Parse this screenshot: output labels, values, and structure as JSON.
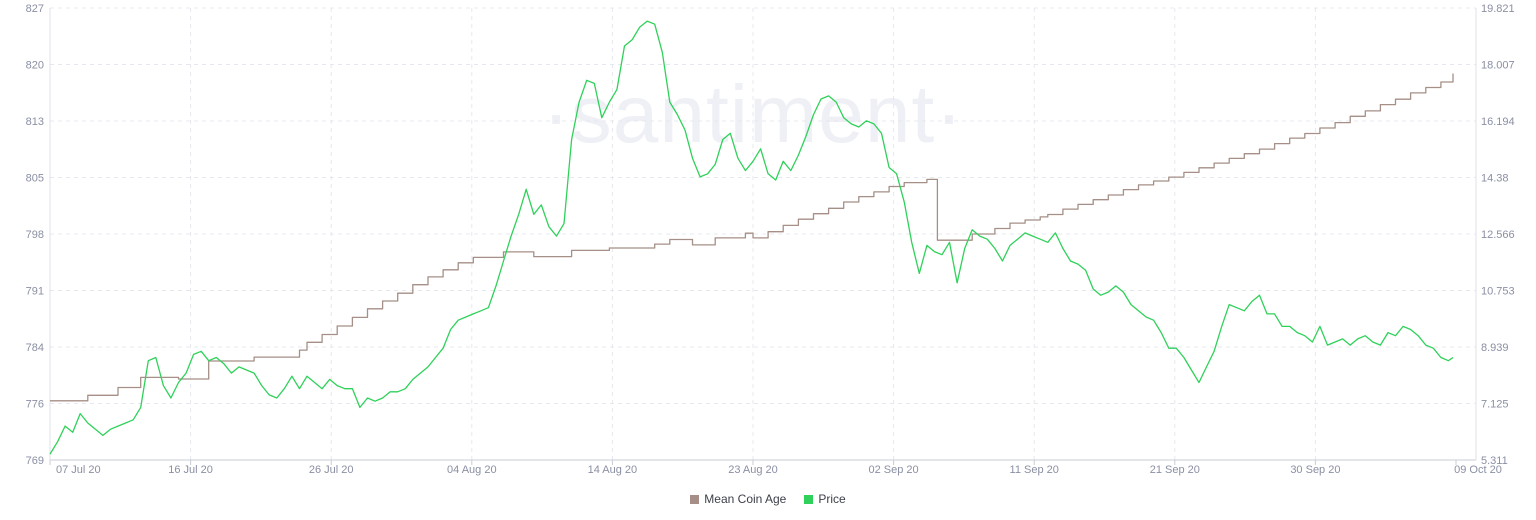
{
  "chart_data": {
    "type": "line",
    "watermark": "·santiment·",
    "x_ticks": [
      "07 Jul 20",
      "16 Jul 20",
      "26 Jul 20",
      "04 Aug 20",
      "14 Aug 20",
      "23 Aug 20",
      "02 Sep 20",
      "11 Sep 20",
      "21 Sep 20",
      "30 Sep 20",
      "09 Oct 20"
    ],
    "y_left_ticks": [
      "827",
      "820",
      "813",
      "805",
      "798",
      "791",
      "784",
      "776",
      "769"
    ],
    "y_right_ticks": [
      "19.821",
      "18.007",
      "16.194",
      "14.38",
      "12.566",
      "10.753",
      "8.939",
      "7.125",
      "5.311"
    ],
    "y_left_range": [
      769,
      827
    ],
    "y_right_range": [
      5.311,
      19.821
    ],
    "x_range_days": [
      0,
      93
    ],
    "grid": true,
    "legend_position": "bottom-center",
    "series": [
      {
        "name": "Mean Coin Age",
        "axis": "left",
        "color": "#a58f86",
        "shape": "step",
        "points": [
          [
            0,
            776.6
          ],
          [
            1.5,
            776.6
          ],
          [
            2.5,
            777.3
          ],
          [
            4,
            777.3
          ],
          [
            4.5,
            778.3
          ],
          [
            5.5,
            778.3
          ],
          [
            6,
            779.6
          ],
          [
            8,
            779.6
          ],
          [
            8.5,
            779.4
          ],
          [
            10,
            779.4
          ],
          [
            10.5,
            781.7
          ],
          [
            12.5,
            781.7
          ],
          [
            13.5,
            782.2
          ],
          [
            15.5,
            782.2
          ],
          [
            16.5,
            783.1
          ],
          [
            17,
            784.1
          ],
          [
            18,
            785.1
          ],
          [
            19,
            786.2
          ],
          [
            20,
            787.3
          ],
          [
            21,
            788.4
          ],
          [
            22,
            789.4
          ],
          [
            23,
            790.4
          ],
          [
            24,
            791.5
          ],
          [
            25,
            792.5
          ],
          [
            26,
            793.4
          ],
          [
            27,
            794.3
          ],
          [
            28,
            795.0
          ],
          [
            29.5,
            795.0
          ],
          [
            30,
            795.7
          ],
          [
            31,
            795.7
          ],
          [
            32,
            795.1
          ],
          [
            34,
            795.1
          ],
          [
            34.5,
            795.9
          ],
          [
            36,
            795.9
          ],
          [
            37,
            796.2
          ],
          [
            39,
            796.2
          ],
          [
            40,
            796.7
          ],
          [
            41,
            797.3
          ],
          [
            42,
            797.3
          ],
          [
            42.5,
            796.6
          ],
          [
            43.5,
            796.6
          ],
          [
            44,
            797.5
          ],
          [
            45,
            797.5
          ],
          [
            46,
            798.1
          ],
          [
            46.5,
            797.5
          ],
          [
            47,
            797.5
          ],
          [
            47.5,
            798.3
          ],
          [
            48.5,
            799.1
          ],
          [
            49.5,
            799.9
          ],
          [
            50.5,
            800.6
          ],
          [
            51.5,
            801.3
          ],
          [
            52.5,
            802.1
          ],
          [
            53.5,
            802.8
          ],
          [
            54.5,
            803.4
          ],
          [
            55.5,
            804.1
          ],
          [
            56.5,
            804.6
          ],
          [
            58,
            805.0
          ],
          [
            58.5,
            805.0
          ],
          [
            58.7,
            797.2
          ],
          [
            60.5,
            797.2
          ],
          [
            61,
            798.0
          ],
          [
            62.5,
            798.7
          ],
          [
            63.5,
            799.4
          ],
          [
            64.5,
            799.8
          ],
          [
            65.5,
            800.2
          ],
          [
            66,
            800.5
          ],
          [
            67,
            801.2
          ],
          [
            68,
            801.8
          ],
          [
            69,
            802.4
          ],
          [
            70,
            803.0
          ],
          [
            71,
            803.7
          ],
          [
            72,
            804.3
          ],
          [
            73,
            804.8
          ],
          [
            74,
            805.3
          ],
          [
            75,
            805.9
          ],
          [
            76,
            806.5
          ],
          [
            77,
            807.1
          ],
          [
            78,
            807.7
          ],
          [
            79,
            808.3
          ],
          [
            80,
            808.9
          ],
          [
            81,
            809.6
          ],
          [
            82,
            810.3
          ],
          [
            83,
            810.9
          ],
          [
            84,
            811.6
          ],
          [
            85,
            812.3
          ],
          [
            86,
            813.1
          ],
          [
            87,
            813.8
          ],
          [
            88,
            814.6
          ],
          [
            89,
            815.3
          ],
          [
            90,
            816.1
          ],
          [
            91,
            816.8
          ],
          [
            92,
            817.5
          ],
          [
            92.8,
            818.6
          ]
        ]
      },
      {
        "name": "Price",
        "axis": "right",
        "color": "#2fd15a",
        "shape": "line",
        "points": [
          [
            0,
            5.5
          ],
          [
            0.5,
            5.9
          ],
          [
            1,
            6.4
          ],
          [
            1.5,
            6.2
          ],
          [
            2,
            6.8
          ],
          [
            2.5,
            6.5
          ],
          [
            3,
            6.3
          ],
          [
            3.5,
            6.1
          ],
          [
            4,
            6.3
          ],
          [
            4.5,
            6.4
          ],
          [
            5,
            6.5
          ],
          [
            5.5,
            6.6
          ],
          [
            6,
            7.0
          ],
          [
            6.5,
            8.5
          ],
          [
            7,
            8.6
          ],
          [
            7.5,
            7.7
          ],
          [
            8,
            7.3
          ],
          [
            8.5,
            7.8
          ],
          [
            9,
            8.1
          ],
          [
            9.5,
            8.7
          ],
          [
            10,
            8.8
          ],
          [
            10.5,
            8.5
          ],
          [
            11,
            8.6
          ],
          [
            11.5,
            8.4
          ],
          [
            12,
            8.1
          ],
          [
            12.5,
            8.3
          ],
          [
            13,
            8.2
          ],
          [
            13.5,
            8.1
          ],
          [
            14,
            7.7
          ],
          [
            14.5,
            7.4
          ],
          [
            15,
            7.3
          ],
          [
            15.5,
            7.6
          ],
          [
            16,
            8.0
          ],
          [
            16.5,
            7.6
          ],
          [
            17,
            8.0
          ],
          [
            17.5,
            7.8
          ],
          [
            18,
            7.6
          ],
          [
            18.5,
            7.9
          ],
          [
            19,
            7.7
          ],
          [
            19.5,
            7.6
          ],
          [
            20,
            7.6
          ],
          [
            20.5,
            7.0
          ],
          [
            21,
            7.3
          ],
          [
            21.5,
            7.2
          ],
          [
            22,
            7.3
          ],
          [
            22.5,
            7.5
          ],
          [
            23,
            7.5
          ],
          [
            23.5,
            7.6
          ],
          [
            24,
            7.9
          ],
          [
            24.5,
            8.1
          ],
          [
            25,
            8.3
          ],
          [
            25.5,
            8.6
          ],
          [
            26,
            8.9
          ],
          [
            26.5,
            9.5
          ],
          [
            27,
            9.8
          ],
          [
            27.5,
            9.9
          ],
          [
            28,
            10.0
          ],
          [
            28.5,
            10.1
          ],
          [
            29,
            10.2
          ],
          [
            29.5,
            10.9
          ],
          [
            30,
            11.7
          ],
          [
            30.5,
            12.5
          ],
          [
            31,
            13.2
          ],
          [
            31.5,
            14.0
          ],
          [
            32,
            13.2
          ],
          [
            32.5,
            13.5
          ],
          [
            33,
            12.8
          ],
          [
            33.5,
            12.5
          ],
          [
            34,
            12.9
          ],
          [
            34.5,
            15.6
          ],
          [
            35,
            16.8
          ],
          [
            35.5,
            17.5
          ],
          [
            36,
            17.4
          ],
          [
            36.5,
            16.3
          ],
          [
            37,
            16.8
          ],
          [
            37.5,
            17.2
          ],
          [
            38,
            18.6
          ],
          [
            38.5,
            18.8
          ],
          [
            39,
            19.2
          ],
          [
            39.5,
            19.4
          ],
          [
            40,
            19.3
          ],
          [
            40.5,
            18.4
          ],
          [
            41,
            16.8
          ],
          [
            41.5,
            16.4
          ],
          [
            42,
            15.9
          ],
          [
            42.5,
            15.0
          ],
          [
            43,
            14.4
          ],
          [
            43.5,
            14.5
          ],
          [
            44,
            14.8
          ],
          [
            44.5,
            15.6
          ],
          [
            45,
            15.8
          ],
          [
            45.5,
            15.0
          ],
          [
            46,
            14.6
          ],
          [
            46.5,
            14.9
          ],
          [
            47,
            15.3
          ],
          [
            47.5,
            14.5
          ],
          [
            48,
            14.3
          ],
          [
            48.5,
            14.9
          ],
          [
            49,
            14.6
          ],
          [
            49.5,
            15.1
          ],
          [
            50,
            15.7
          ],
          [
            50.5,
            16.4
          ],
          [
            51,
            16.9
          ],
          [
            51.5,
            17.0
          ],
          [
            52,
            16.8
          ],
          [
            52.5,
            16.3
          ],
          [
            53,
            16.1
          ],
          [
            53.5,
            16.0
          ],
          [
            54,
            16.2
          ],
          [
            54.5,
            16.1
          ],
          [
            55,
            15.8
          ],
          [
            55.5,
            14.7
          ],
          [
            56,
            14.5
          ],
          [
            56.5,
            13.6
          ],
          [
            57,
            12.3
          ],
          [
            57.5,
            11.3
          ],
          [
            58,
            12.2
          ],
          [
            58.5,
            12.0
          ],
          [
            59,
            11.9
          ],
          [
            59.5,
            12.3
          ],
          [
            60,
            11.0
          ],
          [
            60.5,
            12.1
          ],
          [
            61,
            12.7
          ],
          [
            61.5,
            12.5
          ],
          [
            62,
            12.4
          ],
          [
            62.5,
            12.1
          ],
          [
            63,
            11.7
          ],
          [
            63.5,
            12.2
          ],
          [
            64,
            12.4
          ],
          [
            64.5,
            12.6
          ],
          [
            65,
            12.5
          ],
          [
            65.5,
            12.4
          ],
          [
            66,
            12.3
          ],
          [
            66.5,
            12.6
          ],
          [
            67,
            12.1
          ],
          [
            67.5,
            11.7
          ],
          [
            68,
            11.6
          ],
          [
            68.5,
            11.4
          ],
          [
            69,
            10.8
          ],
          [
            69.5,
            10.6
          ],
          [
            70,
            10.7
          ],
          [
            70.5,
            10.9
          ],
          [
            71,
            10.7
          ],
          [
            71.5,
            10.3
          ],
          [
            72,
            10.1
          ],
          [
            72.5,
            9.9
          ],
          [
            73,
            9.8
          ],
          [
            73.5,
            9.4
          ],
          [
            74,
            8.9
          ],
          [
            74.5,
            8.9
          ],
          [
            75,
            8.6
          ],
          [
            75.5,
            8.2
          ],
          [
            76,
            7.8
          ],
          [
            76.5,
            8.3
          ],
          [
            77,
            8.8
          ],
          [
            77.5,
            9.6
          ],
          [
            78,
            10.3
          ],
          [
            78.5,
            10.2
          ],
          [
            79,
            10.1
          ],
          [
            79.5,
            10.4
          ],
          [
            80,
            10.6
          ],
          [
            80.5,
            10.0
          ],
          [
            81,
            10.0
          ],
          [
            81.5,
            9.6
          ],
          [
            82,
            9.6
          ],
          [
            82.5,
            9.4
          ],
          [
            83,
            9.3
          ],
          [
            83.5,
            9.1
          ],
          [
            84,
            9.6
          ],
          [
            84.5,
            9.0
          ],
          [
            85,
            9.1
          ],
          [
            85.5,
            9.2
          ],
          [
            86,
            9.0
          ],
          [
            86.5,
            9.2
          ],
          [
            87,
            9.3
          ],
          [
            87.5,
            9.1
          ],
          [
            88,
            9.0
          ],
          [
            88.5,
            9.4
          ],
          [
            89,
            9.3
          ],
          [
            89.5,
            9.6
          ],
          [
            90,
            9.5
          ],
          [
            90.5,
            9.3
          ],
          [
            91,
            9.0
          ],
          [
            91.5,
            8.9
          ],
          [
            92,
            8.6
          ],
          [
            92.5,
            8.5
          ],
          [
            92.8,
            8.6
          ]
        ]
      }
    ]
  }
}
